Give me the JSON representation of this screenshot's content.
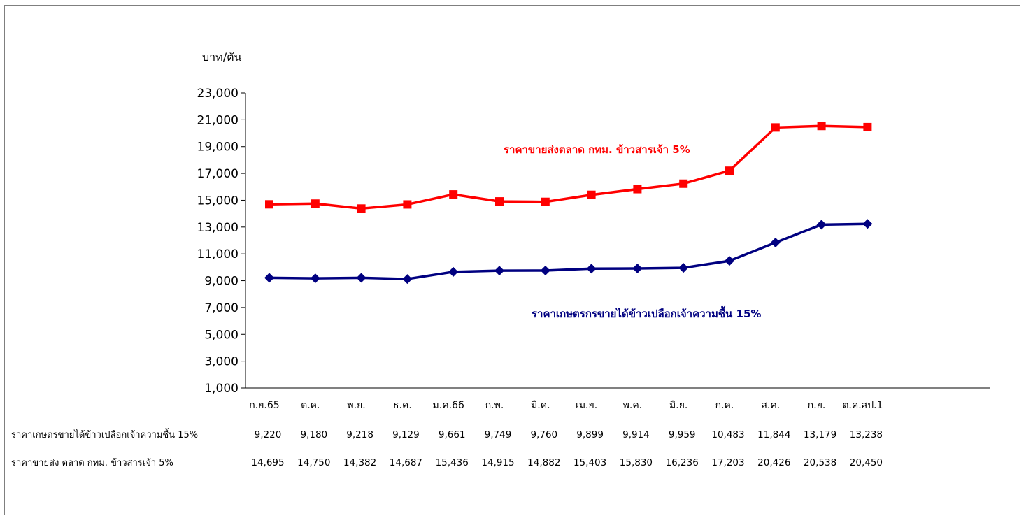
{
  "chart_data": {
    "type": "line",
    "ylabel": "บาท/ตัน",
    "ylim": [
      1000,
      23000
    ],
    "yticks": [
      "1,000",
      "3,000",
      "5,000",
      "7,000",
      "9,000",
      "11,000",
      "13,000",
      "15,000",
      "17,000",
      "19,000",
      "21,000",
      "23,000"
    ],
    "categories": [
      "ก.ย.65",
      "ต.ค.",
      "พ.ย.",
      "ธ.ค.",
      "ม.ค.66",
      "ก.พ.",
      "มี.ค.",
      "เม.ย.",
      "พ.ค.",
      "มิ.ย.",
      "ก.ค.",
      "ส.ค.",
      "ก.ย.",
      "ต.ค.สป.1"
    ],
    "grid": false,
    "series": [
      {
        "name": "ราคาขายส่งตลาด กทม. ข้าวสารเจ้า 5%",
        "table_label": "ราคาขายส่ง ตลาด กทม. ข้าวสารเจ้า 5%",
        "color": "#ff0000",
        "marker": "square",
        "values": [
          14695,
          14750,
          14382,
          14687,
          15436,
          14915,
          14882,
          15403,
          15830,
          16236,
          17203,
          20426,
          20538,
          20450
        ],
        "value_labels": [
          "14,695",
          "14,750",
          "14,382",
          "14,687",
          "15,436",
          "14,915",
          "14,882",
          "15,403",
          "15,830",
          "16,236",
          "17,203",
          "20,426",
          "20,538",
          "20,450"
        ]
      },
      {
        "name": "ราคาเกษตรกรขายได้ข้าวเปลือกเจ้าความชื้น 15%",
        "table_label": "ราคาเกษตรขายได้ข้าวเปลือกเจ้าความชื้น 15%",
        "color": "#000080",
        "marker": "diamond",
        "values": [
          9220,
          9180,
          9218,
          9129,
          9661,
          9749,
          9760,
          9899,
          9914,
          9959,
          10483,
          11844,
          13179,
          13238
        ],
        "value_labels": [
          "9,220",
          "9,180",
          "9,218",
          "9,129",
          "9,661",
          "9,749",
          "9,760",
          "9,899",
          "9,914",
          "9,959",
          "10,483",
          "11,844",
          "13,179",
          "13,238"
        ]
      }
    ]
  }
}
